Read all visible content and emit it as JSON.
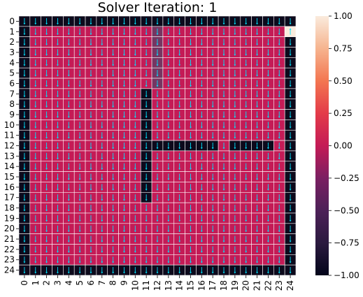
{
  "chart_data": {
    "type": "heatmap",
    "title": "Solver Iteration: 1",
    "xlabel": "",
    "ylabel": "",
    "rows": 25,
    "cols": 25,
    "x_ticks": [
      "0",
      "1",
      "2",
      "3",
      "4",
      "5",
      "6",
      "7",
      "8",
      "9",
      "10",
      "11",
      "12",
      "13",
      "14",
      "15",
      "16",
      "17",
      "18",
      "19",
      "20",
      "21",
      "22",
      "23",
      "24"
    ],
    "y_ticks": [
      "0",
      "1",
      "2",
      "3",
      "4",
      "5",
      "6",
      "7",
      "8",
      "9",
      "10",
      "11",
      "12",
      "13",
      "14",
      "15",
      "16",
      "17",
      "18",
      "19",
      "20",
      "21",
      "22",
      "23",
      "24"
    ],
    "vmin": -1,
    "vmax": 1,
    "colormap": "rocket",
    "colorbar_ticks": [
      "1.00",
      "0.75",
      "0.50",
      "0.25",
      "0.00",
      "−0.25",
      "−0.50",
      "−0.75",
      "−1.00"
    ],
    "colorbar_tick_values": [
      1,
      0.75,
      0.5,
      0.25,
      0,
      -0.25,
      -0.5,
      -0.75,
      -1
    ],
    "value_encoding": {
      "W": -1,
      "F": 0,
      "G": 1
    },
    "grid": [
      "WWWWWWWWWWWWWWWWWWWWWWWWW",
      "WFFFFFFFFFFFFFFFFFFFFFFFG",
      "WFFFFFFFFFFFFFFFFFFFFFFFW",
      "WFFFFFFFFFFFFFFFFFFFFFFFW",
      "WFFFFFFFFFFFFFFFFFFFFFFFW",
      "WFFFFFFFFFFFFFFFFFFFFFFFW",
      "WFFFFFFFFFFFFFFFFFFFFFFFW",
      "WFFFFFFFFFFWFFFFFFFFFFFFW",
      "WFFFFFFFFFFWFFFFFFFFFFFFW",
      "WFFFFFFFFFFWFFFFFFFFFFFFW",
      "WFFFFFFFFFFWFFFFFFFFFFFFW",
      "WFFFFFFFFFFWFFFFFFFFFFFFW",
      "WFFFFFFFFFFWWWWWWWFWWWWFW",
      "WFFFFFFFFFFWFFFFFFFFFFFFW",
      "WFFFFFFFFFFWFFFFFFFFFFFFW",
      "WFFFFFFFFFFWFFFFFFFFFFFFW",
      "WFFFFFFFFFFWFFFFFFFFFFFFW",
      "WFFFFFFFFFFWFFFFFFFFFFFFW",
      "WFFFFFFFFFFFFFFFFFFFFFFFW",
      "WFFFFFFFFFFFFFFFFFFFFFFFW",
      "WFFFFFFFFFFFFFFFFFFFFFFFW",
      "WFFFFFFFFFFFFFFFFFFFFFFFW",
      "WFFFFFFFFFFFFFFFFFFFFFFFW",
      "WFFFFFFFFFFFFFFFFFFFFFFFW",
      "WWWWWWWWWWWWWWWWWWWWWWWWW"
    ],
    "shaded_cells": [
      [
        1,
        12
      ],
      [
        2,
        12
      ],
      [
        3,
        12
      ],
      [
        4,
        12
      ],
      [
        5,
        12
      ],
      [
        6,
        12
      ]
    ],
    "quiver": {
      "direction": "down",
      "color": "#00e5ff",
      "goal_direction": "up"
    },
    "colors": {
      "wall": "#0d0a1c",
      "free": "#c41b56",
      "goal": "#faebdd",
      "shaded": "#763561",
      "grid_line": "#ffffff"
    }
  }
}
